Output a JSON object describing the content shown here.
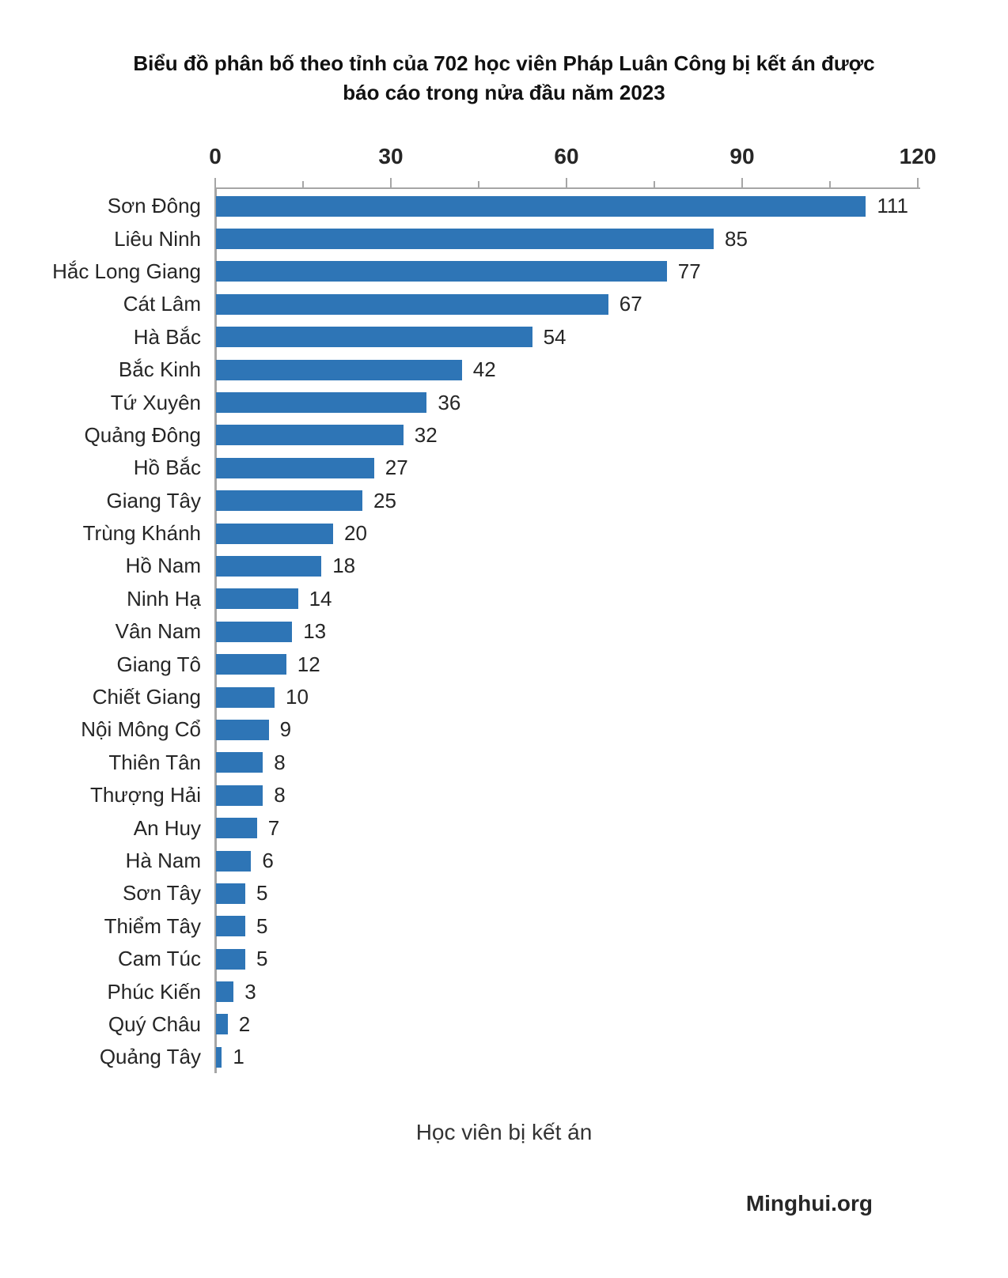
{
  "header": {
    "title_line1": "Biểu đồ phân bố theo tỉnh của 702 học viên Pháp Luân Công bị kết án được",
    "title_line2": "báo cáo trong nửa đầu năm 2023"
  },
  "source": "Minghui.org",
  "chart_data": {
    "type": "bar",
    "orientation": "horizontal",
    "title": "Biểu đồ phân bố theo tỉnh của 702 học viên Pháp Luân Công bị kết án được báo cáo trong nửa đầu năm 2023",
    "xlabel": "Học viên bị kết án",
    "xlim": [
      0,
      120
    ],
    "x_major_ticks": [
      0,
      30,
      60,
      90,
      120
    ],
    "x_minor_tick_step": 15,
    "grid": false,
    "legend": false,
    "bar_color": "#2E75B6",
    "axis_color": "#A6A6A6",
    "total": 702,
    "categories": [
      "Sơn Đông",
      "Liêu Ninh",
      "Hắc Long Giang",
      "Cát Lâm",
      "Hà Bắc",
      "Bắc Kinh",
      "Tứ Xuyên",
      "Quảng Đông",
      "Hồ Bắc",
      "Giang Tây",
      "Trùng Khánh",
      "Hồ Nam",
      "Ninh Hạ",
      "Vân Nam",
      "Giang Tô",
      "Chiết Giang",
      "Nội Mông Cổ",
      "Thiên Tân",
      "Thượng Hải",
      "An Huy",
      "Hà Nam",
      "Sơn Tây",
      "Thiểm Tây",
      "Cam Túc",
      "Phúc Kiến",
      "Quý Châu",
      "Quảng Tây"
    ],
    "values": [
      111,
      85,
      77,
      67,
      54,
      42,
      36,
      32,
      27,
      25,
      20,
      18,
      14,
      13,
      12,
      10,
      9,
      8,
      8,
      7,
      6,
      5,
      5,
      5,
      3,
      2,
      1
    ]
  }
}
